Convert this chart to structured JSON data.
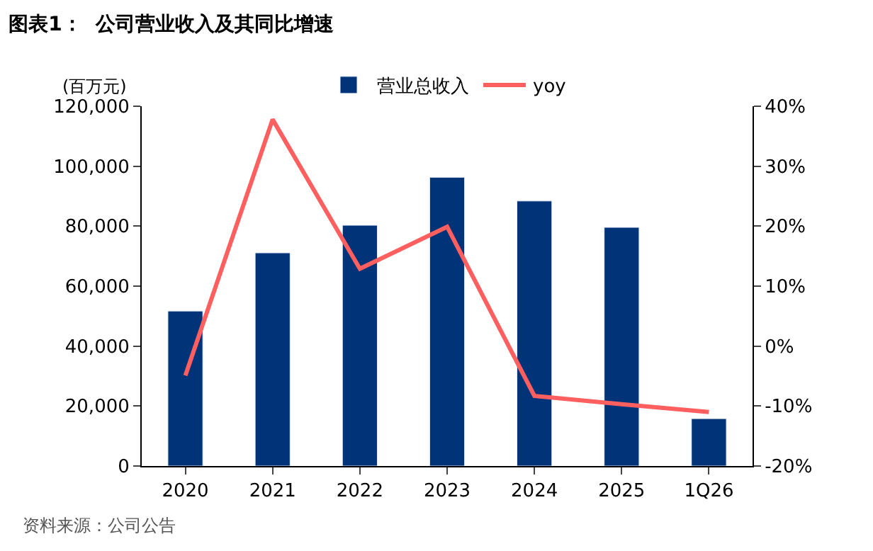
{
  "chart_data": {
    "type": "bar",
    "title": "图表1：  公司营业收入及其同比增速",
    "ylabel": "(百万元)",
    "categories": [
      "2020",
      "2021",
      "2022",
      "2023",
      "2024",
      "2025",
      "1Q26"
    ],
    "series": [
      {
        "name": "营业总收入",
        "color": "#003378",
        "values": [
          51700,
          71100,
          80300,
          96300,
          88400,
          79600,
          15800
        ]
      },
      {
        "name": "yoy",
        "type": "line",
        "axis": "y2",
        "color": "#ff5f5f",
        "marker": "none",
        "values": [
          -4.9,
          37.8,
          12.9,
          19.9,
          -8.3,
          -9.7,
          -11.0
        ]
      }
    ],
    "ylim": [
      0,
      120000
    ],
    "yticks": [
      0,
      {
        "value": 20000,
        "label": "20,000"
      },
      {
        "value": 40000,
        "label": "40,000"
      },
      {
        "value": 60000,
        "label": "60,000"
      },
      {
        "value": 80000,
        "label": "80,000"
      },
      {
        "value": 100000,
        "label": "100,000"
      },
      {
        "value": 120000,
        "label": "120,000"
      }
    ],
    "y2lim": [
      -20,
      40
    ],
    "y2ticks": [
      {
        "value": -20,
        "label": "-20%"
      },
      {
        "value": -10,
        "label": "-10%"
      },
      {
        "value": 0,
        "label": "0%"
      },
      {
        "value": 10,
        "label": "10%"
      },
      {
        "value": 20,
        "label": "20%"
      },
      {
        "value": 30,
        "label": "30%"
      },
      {
        "value": 40,
        "label": "40%"
      }
    ],
    "legend": "top",
    "annotations": [
      "资料来源：公司公告"
    ]
  }
}
